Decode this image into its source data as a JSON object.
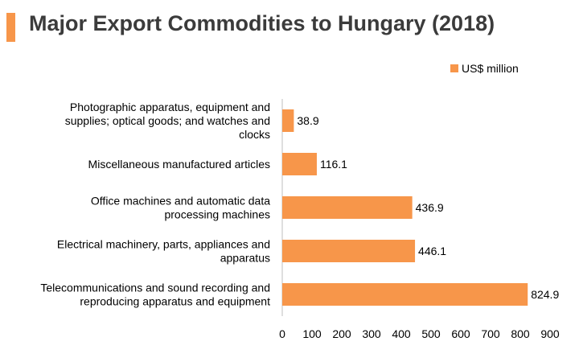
{
  "colors": {
    "bar": "#f7964a",
    "accent": "#f7964a",
    "axis": "#bfbfbf",
    "title": "#3b3b3b"
  },
  "chart_data": {
    "type": "bar",
    "orientation": "horizontal",
    "title": "Major Export Commodities to Hungary (2018)",
    "categories": [
      "Photographic apparatus, equipment and supplies; optical goods; and watches and clocks",
      "Miscellaneous manufactured articles",
      "Office machines and automatic data processing machines",
      "Electrical machinery, parts, appliances and apparatus",
      "Telecommunications and sound recording and reproducing apparatus and equipment"
    ],
    "category_lines": [
      [
        "Photographic apparatus, equipment and",
        "supplies; optical goods; and watches and",
        "clocks"
      ],
      [
        "Miscellaneous manufactured articles"
      ],
      [
        "Office machines and automatic data",
        "processing machines"
      ],
      [
        "Electrical machinery, parts, appliances and",
        "apparatus"
      ],
      [
        "Telecommunications and sound recording and",
        "reproducing apparatus and equipment"
      ]
    ],
    "series": [
      {
        "name": "US$ million",
        "values": [
          38.9,
          116.1,
          436.9,
          446.1,
          824.9
        ],
        "labels": [
          "38.9",
          "116.1",
          "436.9",
          "446.1",
          "824.9"
        ]
      }
    ],
    "xlim": [
      0,
      900
    ],
    "xticks": [
      "0",
      "100",
      "200",
      "300",
      "400",
      "500",
      "600",
      "700",
      "800",
      "900"
    ],
    "grid": false,
    "legend_position": "top-right"
  }
}
